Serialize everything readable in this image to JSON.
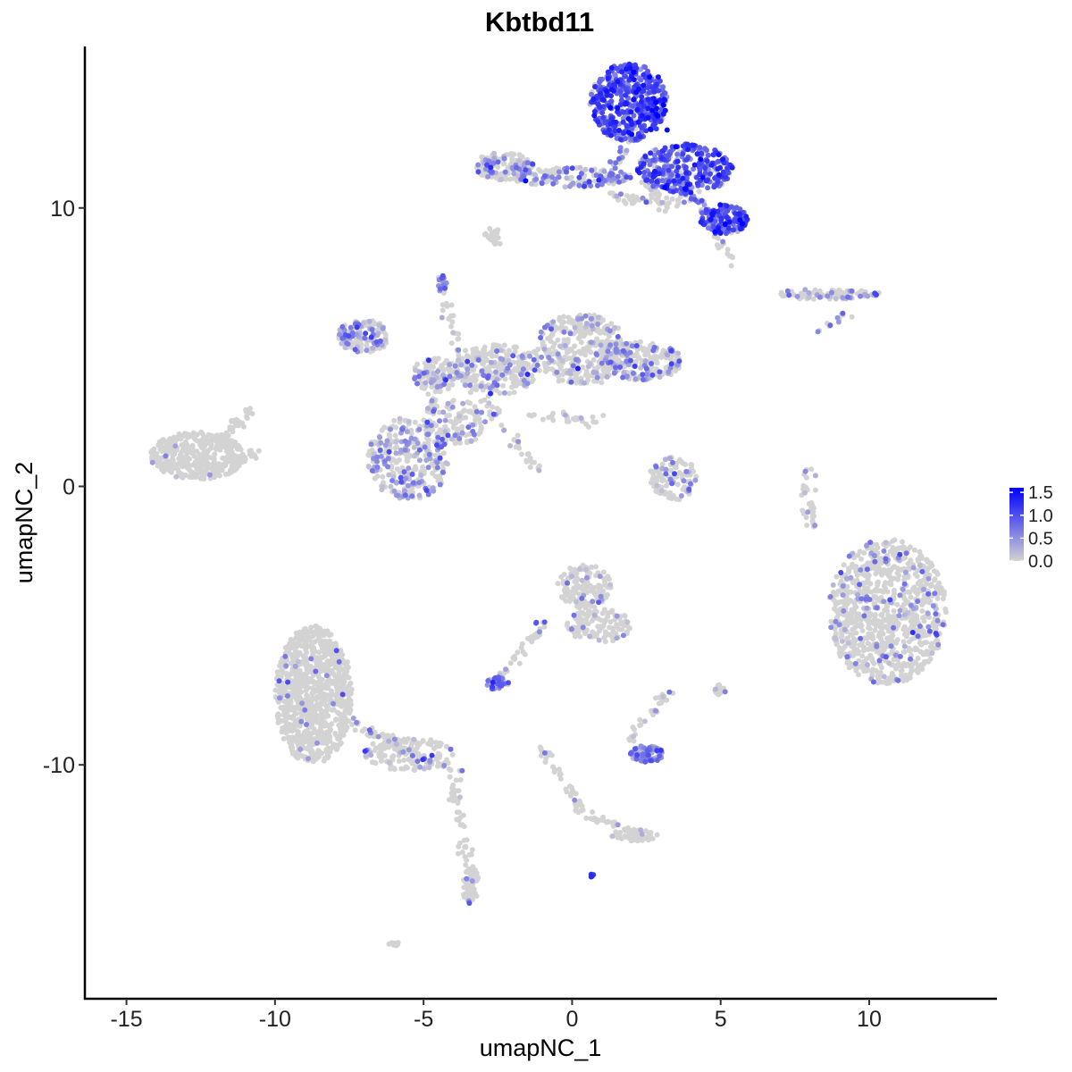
{
  "chart_data": {
    "type": "scatter",
    "title": "Kbtbd11",
    "xlabel": "umapNC_1",
    "ylabel": "umapNC_2",
    "xlim": [
      -16.4,
      14.3
    ],
    "ylim": [
      -18.4,
      15.8
    ],
    "x_ticks": [
      -15,
      -10,
      -5,
      0,
      5,
      10
    ],
    "x_tick_labels": [
      "-15",
      "-10",
      "-5",
      "0",
      "5",
      "10"
    ],
    "y_ticks": [
      -10,
      0,
      10
    ],
    "y_tick_labels": [
      "-10",
      "0",
      "10"
    ],
    "grid": false,
    "color_scale": {
      "low_color": "#d3d3d3",
      "high_color": "#0000ff",
      "min": 0,
      "max": 1.6,
      "breaks": [
        1.5,
        1.0,
        0.5,
        0.0
      ],
      "break_labels": [
        "1.5",
        "1.0",
        "0.5",
        "0.0"
      ],
      "legend_position": "right"
    },
    "clusters": [
      {
        "cx": 1.9,
        "cy": 13.8,
        "rx": 1.3,
        "ry": 1.4,
        "n": 520,
        "expr": 0.95,
        "frac": 0.9
      },
      {
        "cx": 3.8,
        "cy": 11.4,
        "rx": 1.6,
        "ry": 0.9,
        "n": 300,
        "expr": 0.9,
        "frac": 0.85
      },
      {
        "cx": 5.1,
        "cy": 9.6,
        "rx": 0.8,
        "ry": 0.55,
        "n": 140,
        "expr": 0.95,
        "frac": 0.9
      },
      {
        "cx": 0.0,
        "cy": 11.1,
        "rx": 2.0,
        "ry": 0.35,
        "n": 140,
        "expr": 0.55,
        "frac": 0.4
      },
      {
        "cx": -2.3,
        "cy": 11.5,
        "rx": 1.0,
        "ry": 0.5,
        "n": 130,
        "expr": 0.5,
        "frac": 0.35
      },
      {
        "cx": -2.6,
        "cy": 8.8,
        "rx": 0.2,
        "ry": 0.2,
        "n": 14,
        "expr": 0.0,
        "frac": 0.0
      },
      {
        "cx": -4.4,
        "cy": 7.3,
        "rx": 0.18,
        "ry": 0.3,
        "n": 16,
        "expr": 0.7,
        "frac": 0.8
      },
      {
        "cx": -7.0,
        "cy": 5.4,
        "rx": 0.9,
        "ry": 0.6,
        "n": 140,
        "expr": 0.5,
        "frac": 0.35
      },
      {
        "cx": -4.6,
        "cy": 4.0,
        "rx": 0.8,
        "ry": 0.6,
        "n": 110,
        "expr": 0.45,
        "frac": 0.3
      },
      {
        "cx": -2.5,
        "cy": 4.2,
        "rx": 1.4,
        "ry": 0.9,
        "n": 240,
        "expr": 0.4,
        "frac": 0.2
      },
      {
        "cx": 0.3,
        "cy": 4.9,
        "rx": 1.6,
        "ry": 1.3,
        "n": 360,
        "expr": 0.4,
        "frac": 0.15
      },
      {
        "cx": 2.4,
        "cy": 4.5,
        "rx": 1.3,
        "ry": 0.7,
        "n": 220,
        "expr": 0.5,
        "frac": 0.3
      },
      {
        "cx": -5.5,
        "cy": 1.0,
        "rx": 1.4,
        "ry": 1.5,
        "n": 300,
        "expr": 0.5,
        "frac": 0.45
      },
      {
        "cx": -3.8,
        "cy": 2.3,
        "rx": 0.9,
        "ry": 0.8,
        "n": 100,
        "expr": 0.4,
        "frac": 0.2
      },
      {
        "cx": -12.6,
        "cy": 1.1,
        "rx": 1.6,
        "ry": 0.85,
        "n": 380,
        "expr": 0.5,
        "frac": 0.01
      },
      {
        "cx": 3.4,
        "cy": 0.3,
        "rx": 0.8,
        "ry": 0.8,
        "n": 110,
        "expr": 0.5,
        "frac": 0.15
      },
      {
        "cx": 8.5,
        "cy": 6.9,
        "rx": 1.9,
        "ry": 0.18,
        "n": 90,
        "expr": 0.5,
        "frac": 0.25
      },
      {
        "cx": 8.0,
        "cy": -0.5,
        "rx": 0.3,
        "ry": 1.2,
        "n": 34,
        "expr": 0.5,
        "frac": 0.15
      },
      {
        "cx": 10.6,
        "cy": -4.5,
        "rx": 2.0,
        "ry": 2.6,
        "n": 900,
        "expr": 0.5,
        "frac": 0.12
      },
      {
        "cx": 0.4,
        "cy": -3.6,
        "rx": 0.9,
        "ry": 0.8,
        "n": 150,
        "expr": 0.45,
        "frac": 0.06
      },
      {
        "cx": 0.9,
        "cy": -5.0,
        "rx": 1.1,
        "ry": 0.6,
        "n": 120,
        "expr": 0.45,
        "frac": 0.04
      },
      {
        "cx": -2.5,
        "cy": -7.1,
        "rx": 0.4,
        "ry": 0.25,
        "n": 40,
        "expr": 0.7,
        "frac": 0.7
      },
      {
        "cx": 2.5,
        "cy": -9.6,
        "rx": 0.6,
        "ry": 0.3,
        "n": 90,
        "expr": 0.45,
        "frac": 0.9
      },
      {
        "cx": -8.7,
        "cy": -7.5,
        "rx": 1.3,
        "ry": 2.5,
        "n": 900,
        "expr": 0.5,
        "frac": 0.02
      },
      {
        "cx": -5.5,
        "cy": -9.6,
        "rx": 1.5,
        "ry": 0.6,
        "n": 160,
        "expr": 0.45,
        "frac": 0.08
      },
      {
        "cx": -3.4,
        "cy": -14.4,
        "rx": 0.3,
        "ry": 0.6,
        "n": 50,
        "expr": 0.5,
        "frac": 0.08
      },
      {
        "cx": 2.1,
        "cy": -12.5,
        "rx": 0.8,
        "ry": 0.25,
        "n": 40,
        "expr": 0.5,
        "frac": 0.04
      },
      {
        "cx": 5.0,
        "cy": -7.3,
        "rx": 0.2,
        "ry": 0.2,
        "n": 14,
        "expr": 0.5,
        "frac": 0.35
      },
      {
        "cx": 0.7,
        "cy": -14.0,
        "rx": 0.1,
        "ry": 0.1,
        "n": 5,
        "expr": 1.1,
        "frac": 1.0
      },
      {
        "cx": -6.0,
        "cy": -16.4,
        "rx": 0.2,
        "ry": 0.1,
        "n": 8,
        "expr": 0.0,
        "frac": 0.0
      },
      {
        "cx": -2.7,
        "cy": 9.1,
        "rx": 0.25,
        "ry": 0.2,
        "n": 14,
        "expr": 0.0,
        "frac": 0.0
      }
    ],
    "bridges": [
      {
        "from": [
          -4.4,
          7.0
        ],
        "to": [
          -3.4,
          3.5
        ],
        "n": 40,
        "expr": 0.4,
        "frac": 0.2
      },
      {
        "from": [
          -3.0,
          3.2
        ],
        "to": [
          -1.2,
          0.6
        ],
        "n": 40,
        "expr": 0.4,
        "frac": 0.1
      },
      {
        "from": [
          -4.6,
          3.4
        ],
        "to": [
          -4.9,
          2.0
        ],
        "n": 30,
        "expr": 0.4,
        "frac": 0.2
      },
      {
        "from": [
          -12.0,
          1.5
        ],
        "to": [
          -10.8,
          2.8
        ],
        "n": 40,
        "expr": 0.4,
        "frac": 0.01
      },
      {
        "from": [
          -11.4,
          0.8
        ],
        "to": [
          -10.6,
          1.3
        ],
        "n": 25,
        "expr": 0.4,
        "frac": 0.01
      },
      {
        "from": [
          -7.5,
          -8.5
        ],
        "to": [
          -3.8,
          -10.3
        ],
        "n": 70,
        "expr": 0.5,
        "frac": 0.15
      },
      {
        "from": [
          -4.0,
          -10.6
        ],
        "to": [
          -3.4,
          -14.0
        ],
        "n": 50,
        "expr": 0.5,
        "frac": 0.05
      },
      {
        "from": [
          -1.0,
          -9.5
        ],
        "to": [
          0.5,
          -11.8
        ],
        "n": 40,
        "expr": 0.4,
        "frac": 0.05
      },
      {
        "from": [
          0.5,
          -11.8
        ],
        "to": [
          2.4,
          -12.6
        ],
        "n": 40,
        "expr": 0.4,
        "frac": 0.05
      },
      {
        "from": [
          -2.5,
          -7.0
        ],
        "to": [
          -0.9,
          -4.8
        ],
        "n": 40,
        "expr": 0.5,
        "frac": 0.15
      },
      {
        "from": [
          1.0,
          10.7
        ],
        "to": [
          2.0,
          12.6
        ],
        "n": 40,
        "expr": 0.6,
        "frac": 0.5
      },
      {
        "from": [
          3.0,
          11.6
        ],
        "to": [
          4.6,
          9.8
        ],
        "n": 50,
        "expr": 0.7,
        "frac": 0.6
      },
      {
        "from": [
          1.2,
          10.4
        ],
        "to": [
          4.0,
          10.2
        ],
        "n": 40,
        "expr": 0.4,
        "frac": 0.1
      },
      {
        "from": [
          2.5,
          11.0
        ],
        "to": [
          3.2,
          10.0
        ],
        "n": 30,
        "expr": 0.3,
        "frac": 0.1
      },
      {
        "from": [
          5.0,
          9.0
        ],
        "to": [
          5.4,
          8.0
        ],
        "n": 14,
        "expr": 0.3,
        "frac": 0.05
      },
      {
        "from": [
          1.8,
          -9.2
        ],
        "to": [
          3.3,
          -7.3
        ],
        "n": 30,
        "expr": 0.4,
        "frac": 0.2
      },
      {
        "from": [
          -1.5,
          2.6
        ],
        "to": [
          1.2,
          2.3
        ],
        "n": 30,
        "expr": 0.3,
        "frac": 0.05
      },
      {
        "from": [
          8.3,
          5.5
        ],
        "to": [
          9.3,
          6.2
        ],
        "n": 12,
        "expr": 0.5,
        "frac": 0.4
      }
    ],
    "highlight_points": [
      {
        "x": 3.2,
        "y": 12.8,
        "v": 1.55
      },
      {
        "x": 2.4,
        "y": 14.4,
        "v": 1.45
      },
      {
        "x": 1.9,
        "y": 13.2,
        "v": 1.5
      },
      {
        "x": 4.4,
        "y": 11.1,
        "v": 1.5
      },
      {
        "x": 5.3,
        "y": 9.5,
        "v": 1.45
      },
      {
        "x": 3.9,
        "y": 12.1,
        "v": 1.4
      },
      {
        "x": 1.4,
        "y": 14.2,
        "v": 1.4
      },
      {
        "x": 2.7,
        "y": 13.5,
        "v": 1.55
      },
      {
        "x": 0.9,
        "y": 11.0,
        "v": 1.3
      },
      {
        "x": 4.9,
        "y": 11.4,
        "v": 1.35
      },
      {
        "x": 3.5,
        "y": 12.2,
        "v": 1.6
      },
      {
        "x": 2.9,
        "y": 14.7,
        "v": 1.45
      }
    ]
  }
}
